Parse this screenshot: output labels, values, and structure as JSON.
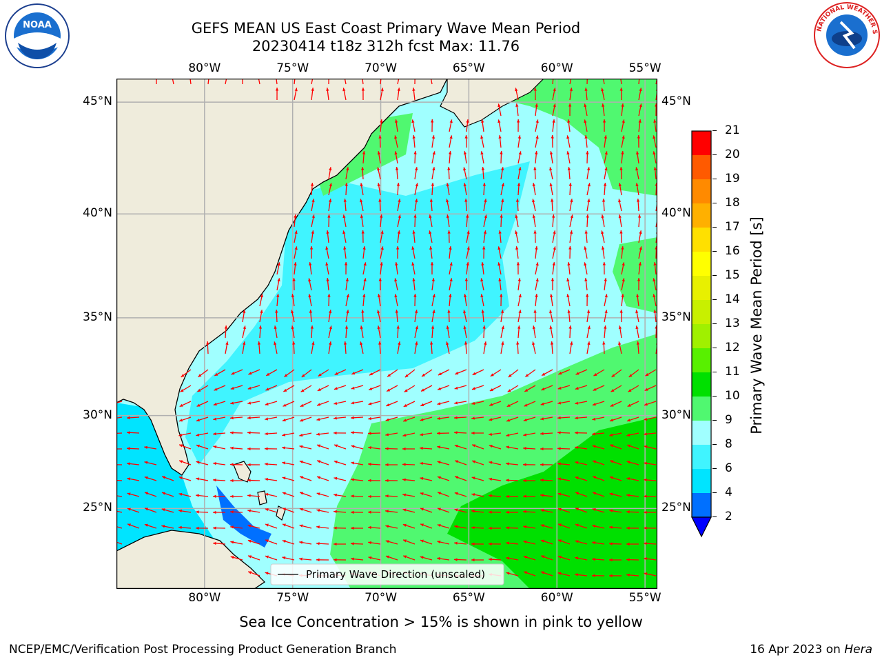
{
  "title": {
    "line1": "GEFS MEAN US East Coast Primary Wave Mean Period",
    "line2": "20230414 t18z 312h fcst   Max: 11.76"
  },
  "map": {
    "lon_labels": [
      "80°W",
      "75°W",
      "70°W",
      "65°W",
      "60°W",
      "55°W"
    ],
    "lat_labels": [
      "45°N",
      "40°N",
      "35°N",
      "30°N",
      "25°N"
    ],
    "legend_label": "Primary Wave Direction (unscaled)",
    "extent": {
      "lon_min": -85,
      "lon_max": -54.3,
      "lat_min": 20.5,
      "lat_max": 46
    }
  },
  "colorbar": {
    "label": "Primary Wave Mean Period [s]",
    "ticks": [
      "2",
      "4",
      "6",
      "8",
      "9",
      "10",
      "11",
      "12",
      "13",
      "14",
      "15",
      "16",
      "17",
      "18",
      "19",
      "20",
      "21"
    ],
    "colors": [
      "#0070ff",
      "#00e4ff",
      "#40f4ff",
      "#a0ffff",
      "#50f870",
      "#00e000",
      "#58f000",
      "#a0f000",
      "#c8f000",
      "#e8f000",
      "#ffff00",
      "#ffe000",
      "#ffb000",
      "#ff8a00",
      "#ff5a00",
      "#ff2c00",
      "#ff0000"
    ],
    "under_color": "#0000ff"
  },
  "notes": {
    "sea_ice": "Sea Ice Concentration > 15% is shown in pink to yellow"
  },
  "footer": {
    "left": "NCEP/EMC/Verification Post Processing Product Generation Branch",
    "date": "16 Apr 2023 on ",
    "machine": "Hera"
  },
  "logos": {
    "left_text": "NOAA",
    "right_text": "NATIONAL WEATHER SERVICE"
  }
}
